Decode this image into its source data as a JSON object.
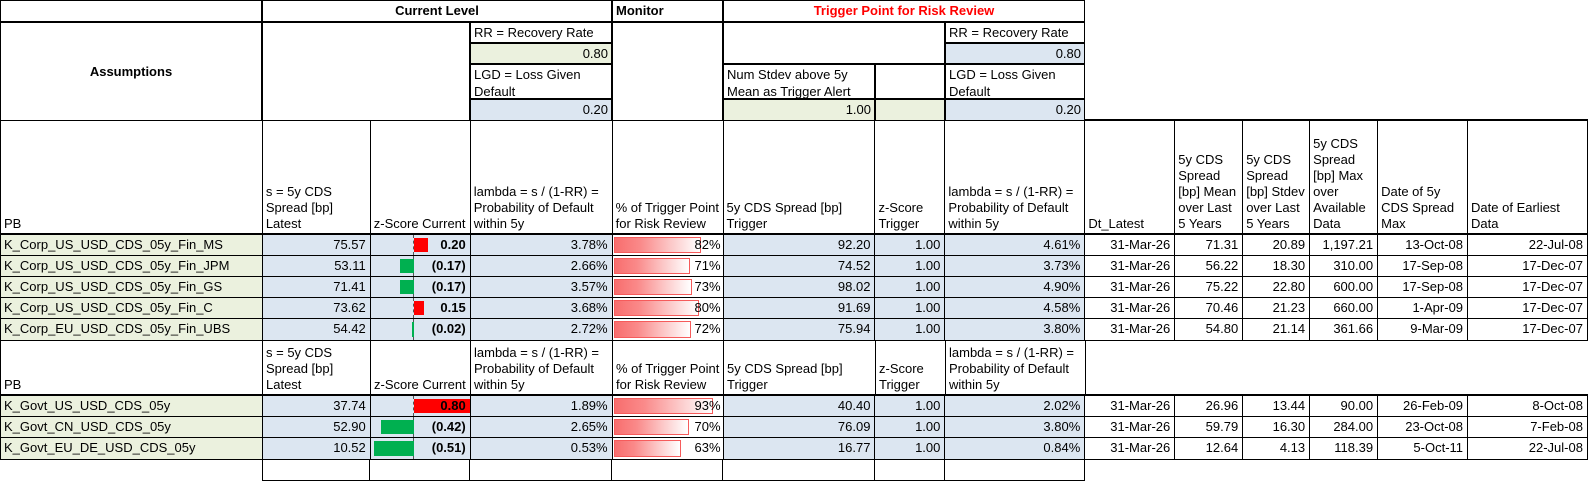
{
  "header_row": {
    "current_level": "Current Level",
    "monitor": "Monitor",
    "trigger_point": "Trigger Point for Risk Review"
  },
  "assumptions": {
    "title": "Assumptions",
    "current": {
      "rr_label": "RR = Recovery Rate",
      "rr_value": "0.80",
      "lgd_label": "LGD = Loss Given Default",
      "lgd_value": "0.20"
    },
    "trigger": {
      "rr_label": "RR = Recovery Rate",
      "rr_value": "0.80",
      "stdev_label": "Num Stdev above 5y Mean as Trigger Alert",
      "stdev_value": "1.00",
      "lgd_label": "LGD = Loss Given Default",
      "lgd_value": "0.20"
    }
  },
  "table_headers": {
    "pb": "PB",
    "latest": "s = 5y CDS Spread [bp] Latest",
    "z_current": "z-Score Current",
    "lambda": "lambda = s / (1-RR) = Probability of Default within 5y",
    "pct_trigger": "% of Trigger Point for Risk Review",
    "spread_trigger": "5y CDS Spread [bp] Trigger",
    "z_trigger": "z-Score Trigger",
    "lambda_trigger": "lambda = s / (1-RR) = Probability of Default within 5y",
    "dt_latest": "Dt_Latest",
    "mean5y": "5y CDS Spread [bp] Mean over Last 5 Years",
    "stdev5y": "5y CDS Spread [bp] Stdev over Last 5 Years",
    "max": "5y CDS Spread [bp] Max over Available Data",
    "date_max": "Date of 5y CDS Spread Max",
    "date_earliest": "Date of Earliest Data"
  },
  "colors": {
    "input_green_bg": "#EBF1DE",
    "linked_blue_bg": "#DCE6F1",
    "zbar_positive": "#FF0000",
    "zbar_negative": "#00B050",
    "monitor_bar_border": "#F65B5B",
    "trigger_header_text": "#FF0000"
  },
  "corp_rows": [
    {
      "label": "K_Corp_US_USD_CDS_05y_Fin_MS",
      "latest": "75.57",
      "z_disp": "0.20",
      "z_val": 0.2,
      "lambda": "3.78%",
      "pct_disp": "82%",
      "pct_val": 82,
      "trigger": "92.20",
      "z_trigger": "1.00",
      "lambda_trigger": "4.61%",
      "dt_latest": "31-Mar-26",
      "mean": "71.31",
      "stdev": "20.89",
      "max": "1,197.21",
      "date_max": "13-Oct-08",
      "date_earliest": "22-Jul-08"
    },
    {
      "label": "K_Corp_US_USD_CDS_05y_Fin_JPM",
      "latest": "53.11",
      "z_disp": "(0.17)",
      "z_val": -0.17,
      "lambda": "2.66%",
      "pct_disp": "71%",
      "pct_val": 71,
      "trigger": "74.52",
      "z_trigger": "1.00",
      "lambda_trigger": "3.73%",
      "dt_latest": "31-Mar-26",
      "mean": "56.22",
      "stdev": "18.30",
      "max": "310.00",
      "date_max": "17-Sep-08",
      "date_earliest": "17-Dec-07"
    },
    {
      "label": "K_Corp_US_USD_CDS_05y_Fin_GS",
      "latest": "71.41",
      "z_disp": "(0.17)",
      "z_val": -0.17,
      "lambda": "3.57%",
      "pct_disp": "73%",
      "pct_val": 73,
      "trigger": "98.02",
      "z_trigger": "1.00",
      "lambda_trigger": "4.90%",
      "dt_latest": "31-Mar-26",
      "mean": "75.22",
      "stdev": "22.80",
      "max": "600.00",
      "date_max": "17-Sep-08",
      "date_earliest": "17-Dec-07"
    },
    {
      "label": "K_Corp_US_USD_CDS_05y_Fin_C",
      "latest": "73.62",
      "z_disp": "0.15",
      "z_val": 0.15,
      "lambda": "3.68%",
      "pct_disp": "80%",
      "pct_val": 80,
      "trigger": "91.69",
      "z_trigger": "1.00",
      "lambda_trigger": "4.58%",
      "dt_latest": "31-Mar-26",
      "mean": "70.46",
      "stdev": "21.23",
      "max": "660.00",
      "date_max": "1-Apr-09",
      "date_earliest": "17-Dec-07"
    },
    {
      "label": "K_Corp_EU_USD_CDS_05y_Fin_UBS",
      "latest": "54.42",
      "z_disp": "(0.02)",
      "z_val": -0.02,
      "lambda": "2.72%",
      "pct_disp": "72%",
      "pct_val": 72,
      "trigger": "75.94",
      "z_trigger": "1.00",
      "lambda_trigger": "3.80%",
      "dt_latest": "31-Mar-26",
      "mean": "54.80",
      "stdev": "21.14",
      "max": "361.66",
      "date_max": "9-Mar-09",
      "date_earliest": "17-Dec-07"
    }
  ],
  "govt_rows": [
    {
      "label": "K_Govt_US_USD_CDS_05y",
      "latest": "37.74",
      "z_disp": "0.80",
      "z_val": 0.8,
      "lambda": "1.89%",
      "pct_disp": "93%",
      "pct_val": 93,
      "trigger": "40.40",
      "z_trigger": "1.00",
      "lambda_trigger": "2.02%",
      "dt_latest": "31-Mar-26",
      "mean": "26.96",
      "stdev": "13.44",
      "max": "90.00",
      "date_max": "26-Feb-09",
      "date_earliest": "8-Oct-08"
    },
    {
      "label": "K_Govt_CN_USD_CDS_05y",
      "latest": "52.90",
      "z_disp": "(0.42)",
      "z_val": -0.42,
      "lambda": "2.65%",
      "pct_disp": "70%",
      "pct_val": 70,
      "trigger": "76.09",
      "z_trigger": "1.00",
      "lambda_trigger": "3.80%",
      "dt_latest": "31-Mar-26",
      "mean": "59.79",
      "stdev": "16.30",
      "max": "284.00",
      "date_max": "23-Oct-08",
      "date_earliest": "7-Feb-08"
    },
    {
      "label": "K_Govt_EU_DE_USD_CDS_05y",
      "latest": "10.52",
      "z_disp": "(0.51)",
      "z_val": -0.51,
      "lambda": "0.53%",
      "pct_disp": "63%",
      "pct_val": 63,
      "trigger": "16.77",
      "z_trigger": "1.00",
      "lambda_trigger": "0.84%",
      "dt_latest": "31-Mar-26",
      "mean": "12.64",
      "stdev": "4.13",
      "max": "118.39",
      "date_max": "5-Oct-11",
      "date_earliest": "22-Jul-08"
    }
  ]
}
